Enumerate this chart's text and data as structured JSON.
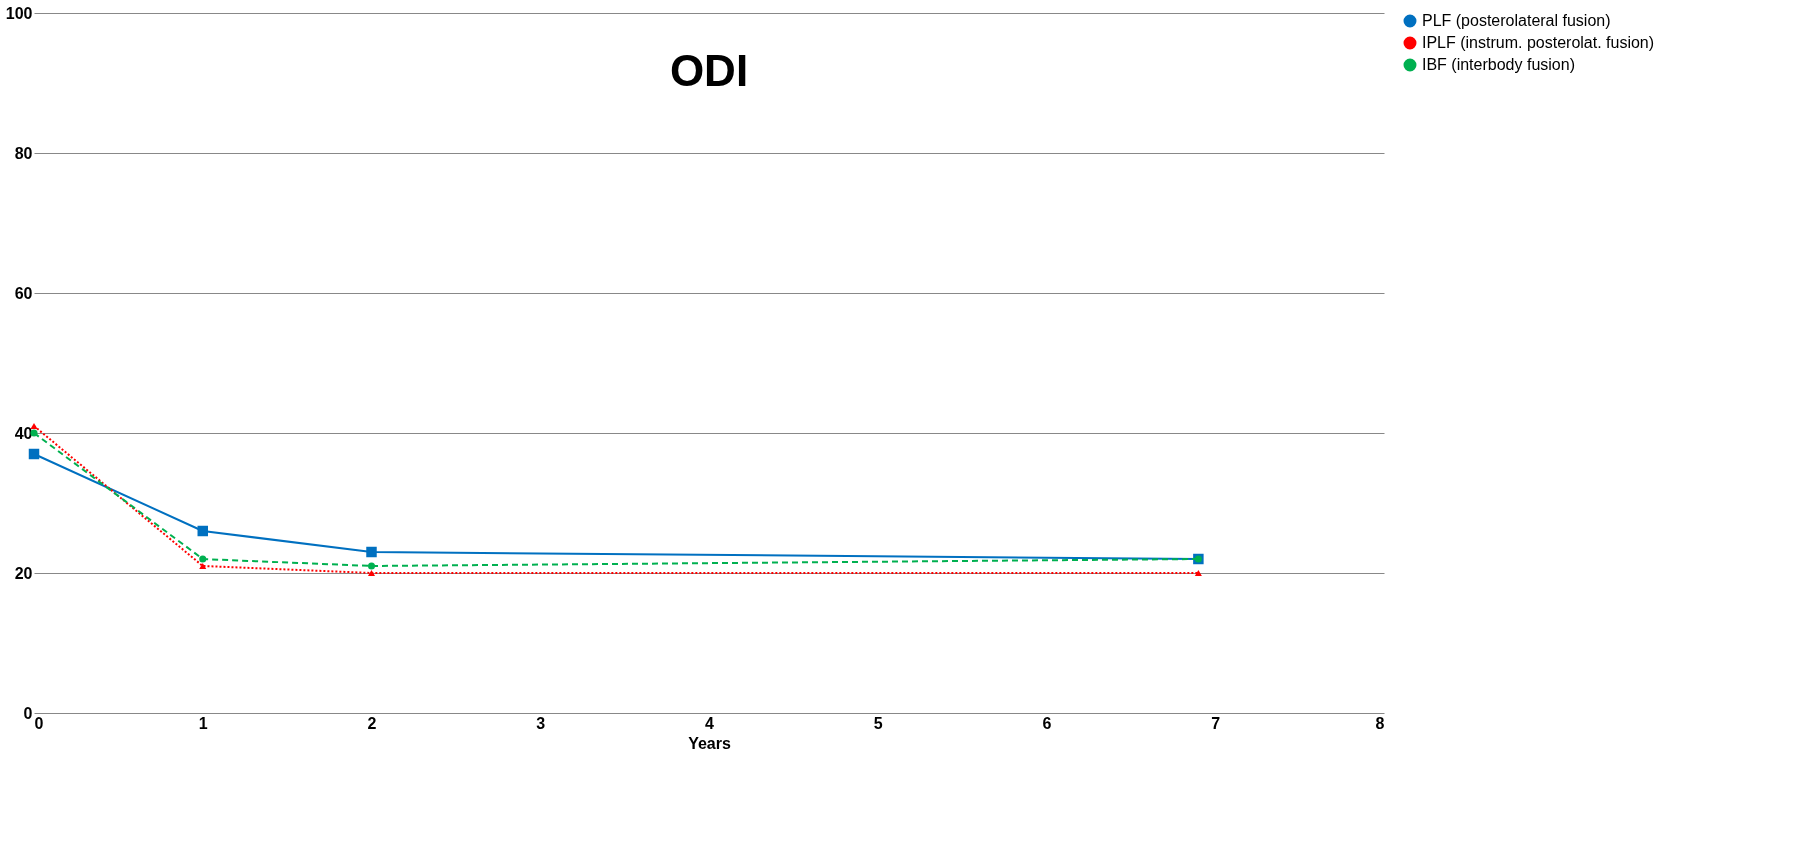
{
  "chart_data": {
    "type": "line",
    "title": "ODI",
    "xlabel": "Years",
    "xlim": [
      0,
      8
    ],
    "xticks": [
      0,
      1,
      2,
      3,
      4,
      5,
      6,
      7,
      8
    ],
    "ylim": [
      0,
      100
    ],
    "yticks": [
      0,
      20,
      40,
      60,
      80,
      100
    ],
    "grid": "y",
    "legend": "top right",
    "series": [
      {
        "name": "PLF (posterolateral fusion)",
        "color": "#0070c0",
        "marker": "square",
        "line_style": "solid",
        "x": [
          0,
          1,
          2,
          6.9
        ],
        "values": [
          37,
          26,
          23,
          22
        ]
      },
      {
        "name": "IPLF (instrum. posterolat. fusion)",
        "color": "#ff0000",
        "marker": "triangle",
        "line_style": "dotted",
        "x": [
          0,
          1,
          2,
          6.9
        ],
        "values": [
          41,
          21,
          20,
          20
        ]
      },
      {
        "name": "IBF (interbody fusion)",
        "color": "#00b050",
        "marker": "circle",
        "line_style": "dashed",
        "x": [
          0,
          1,
          2,
          6.9
        ],
        "values": [
          40,
          22,
          21,
          22
        ]
      }
    ]
  }
}
